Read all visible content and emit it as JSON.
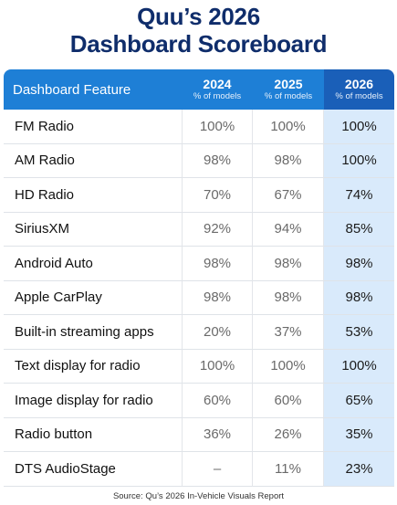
{
  "title_line1": "Quu’s 2026",
  "title_line2": "Dashboard Scoreboard",
  "source": "Source: Qu’s 2026 In-Vehicle Visuals Report",
  "colors": {
    "title": "#0f2d6b",
    "header": "#1e7fd6",
    "header_highlight": "#1a5fb8",
    "column_highlight": "#d9eafb"
  },
  "chart_data": {
    "type": "table",
    "columns": [
      {
        "label": "Dashboard Feature",
        "sub": ""
      },
      {
        "label": "2024",
        "sub": "% of models"
      },
      {
        "label": "2025",
        "sub": "% of models"
      },
      {
        "label": "2026",
        "sub": "% of models"
      }
    ],
    "rows": [
      {
        "feature": "FM Radio",
        "v2024": "100%",
        "v2025": "100%",
        "v2026": "100%"
      },
      {
        "feature": "AM Radio",
        "v2024": "98%",
        "v2025": "98%",
        "v2026": "100%"
      },
      {
        "feature": "HD Radio",
        "v2024": "70%",
        "v2025": "67%",
        "v2026": "74%"
      },
      {
        "feature": "SiriusXM",
        "v2024": "92%",
        "v2025": "94%",
        "v2026": "85%"
      },
      {
        "feature": "Android Auto",
        "v2024": "98%",
        "v2025": "98%",
        "v2026": "98%"
      },
      {
        "feature": "Apple CarPlay",
        "v2024": "98%",
        "v2025": "98%",
        "v2026": "98%"
      },
      {
        "feature": "Built-in streaming apps",
        "v2024": "20%",
        "v2025": "37%",
        "v2026": "53%"
      },
      {
        "feature": "Text display for radio",
        "v2024": "100%",
        "v2025": "100%",
        "v2026": "100%"
      },
      {
        "feature": "Image display for radio",
        "v2024": "60%",
        "v2025": "60%",
        "v2026": "65%"
      },
      {
        "feature": "Radio button",
        "v2024": "36%",
        "v2025": "26%",
        "v2026": "35%"
      },
      {
        "feature": "DTS AudioStage",
        "v2024": "–",
        "v2025": "11%",
        "v2026": "23%"
      }
    ]
  }
}
